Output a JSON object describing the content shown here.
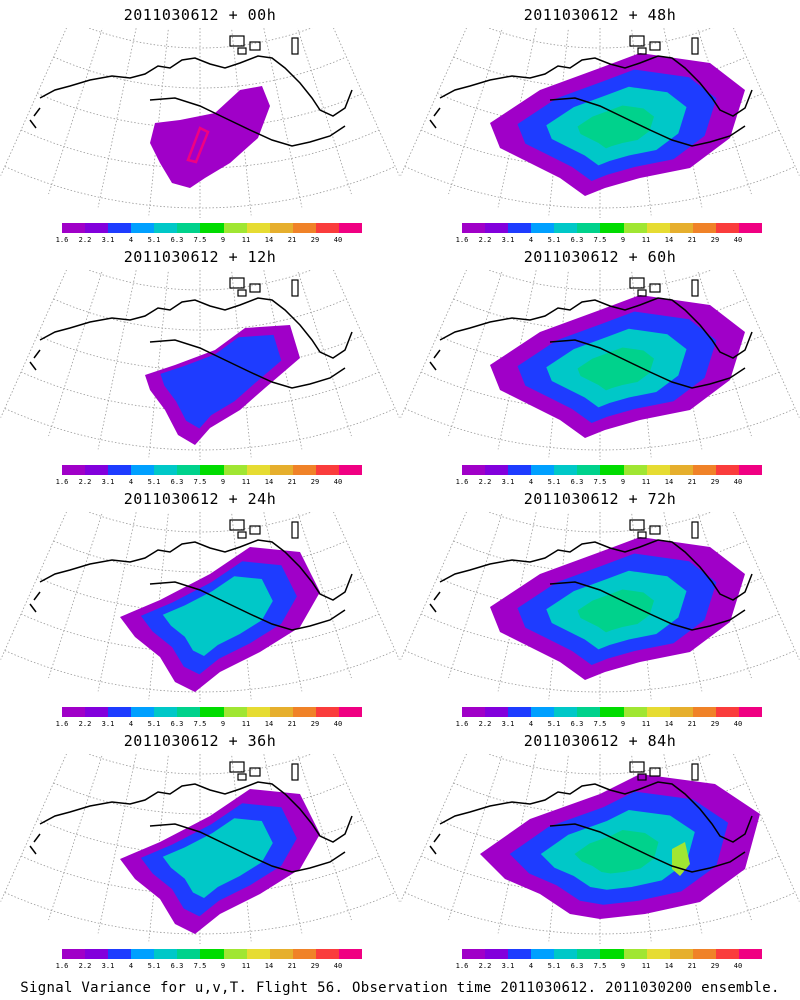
{
  "panels": [
    {
      "title": "2011030612 + 00h",
      "signal_level": 0
    },
    {
      "title": "2011030612 + 48h",
      "signal_level": 3
    },
    {
      "title": "2011030612 + 12h",
      "signal_level": 1
    },
    {
      "title": "2011030612 + 60h",
      "signal_level": 3
    },
    {
      "title": "2011030612 + 24h",
      "signal_level": 2
    },
    {
      "title": "2011030612 + 72h",
      "signal_level": 3
    },
    {
      "title": "2011030612 + 36h",
      "signal_level": 2
    },
    {
      "title": "2011030612 + 84h",
      "signal_level": 4
    }
  ],
  "colorbar": {
    "labels": [
      "1.6",
      "2.2",
      "3.1",
      "4",
      "5.1",
      "6.3",
      "7.5",
      "9",
      "11",
      "14",
      "21",
      "29",
      "40"
    ],
    "colors": [
      "#a000c8",
      "#8200dc",
      "#1e3cff",
      "#00a0ff",
      "#00c8c8",
      "#00d28c",
      "#00dc00",
      "#a0e632",
      "#e6dc32",
      "#e6af2d",
      "#f08228",
      "#fa3c3c",
      "#f00082"
    ]
  },
  "footer": "Signal Variance for u,v,T. Flight 56. Observation time 2011030612. 2011030200 ensemble."
}
